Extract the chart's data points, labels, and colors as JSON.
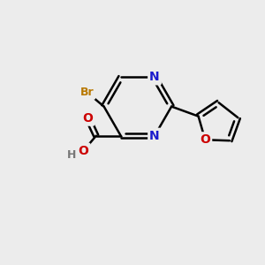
{
  "bg_color": "#ececec",
  "bond_color": "#000000",
  "bond_width": 1.8,
  "atom_colors": {
    "N": "#1a1acc",
    "O": "#cc0000",
    "Br": "#b87800",
    "H": "#777777"
  },
  "font_size_atom": 10,
  "font_size_br": 9,
  "font_size_h": 9
}
